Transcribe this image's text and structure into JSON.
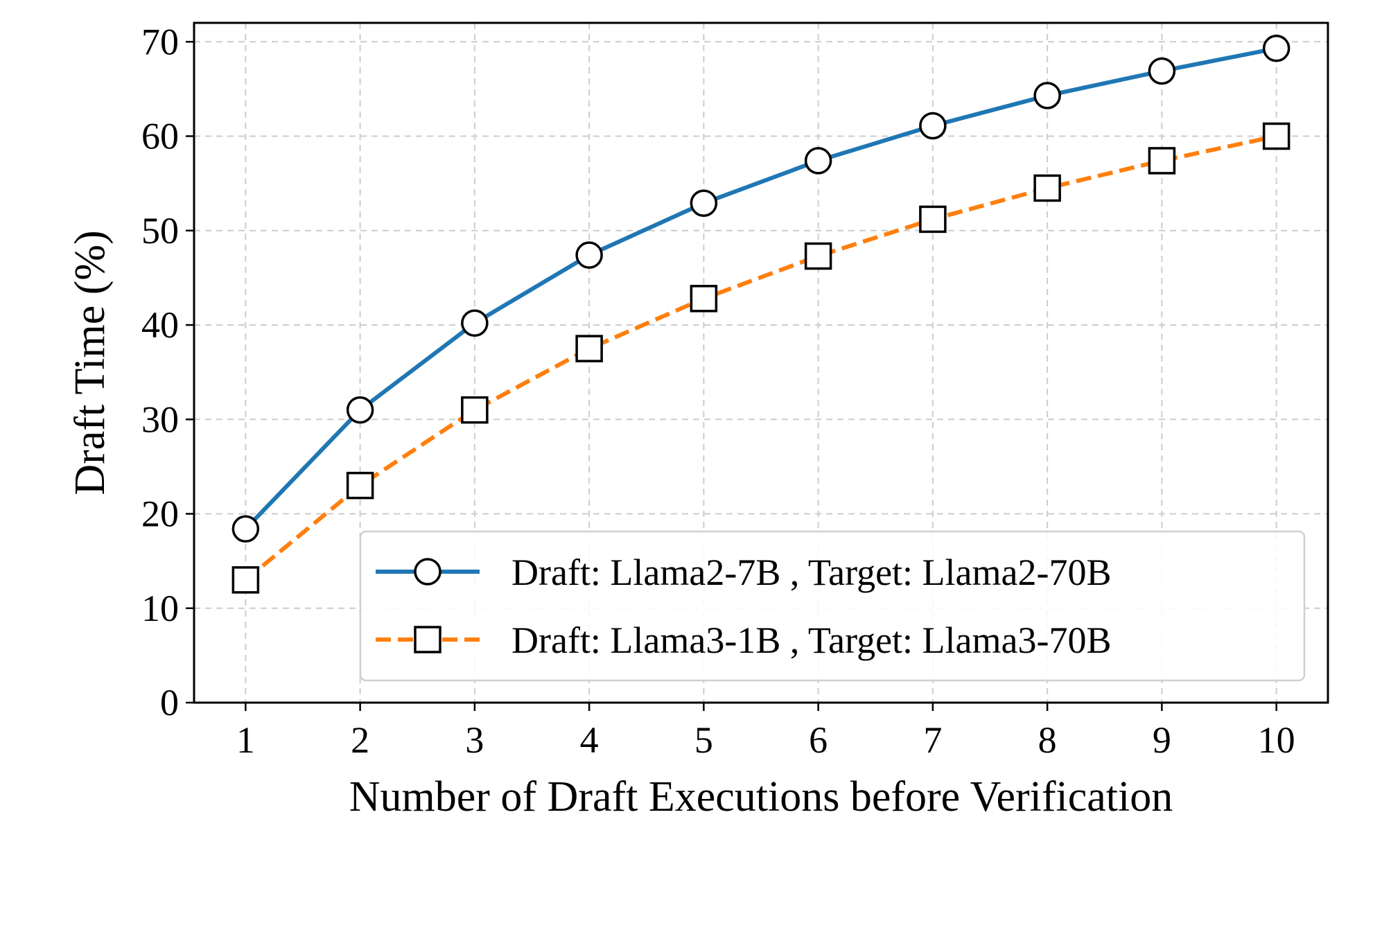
{
  "chart_data": {
    "type": "line",
    "xlabel": "Number of Draft Executions before Verification",
    "ylabel": "Draft Time (%)",
    "x": [
      1,
      2,
      3,
      4,
      5,
      6,
      7,
      8,
      9,
      10
    ],
    "xticks": [
      "1",
      "2",
      "3",
      "4",
      "5",
      "6",
      "7",
      "8",
      "9",
      "10"
    ],
    "yticks": [
      "0",
      "10",
      "20",
      "30",
      "40",
      "50",
      "60",
      "70"
    ],
    "xlim": [
      0.55,
      10.45
    ],
    "ylim": [
      0,
      72
    ],
    "grid": true,
    "legend_position": "lower-right",
    "series": [
      {
        "name": "Draft: Llama2-7B , Target: Llama2-70B",
        "values": [
          18.4,
          31.0,
          40.2,
          47.4,
          52.9,
          57.4,
          61.1,
          64.3,
          66.9,
          69.3
        ],
        "color": "#1f77b4",
        "line_style": "solid",
        "marker": "circle"
      },
      {
        "name": "Draft: Llama3-1B , Target: Llama3-70B",
        "values": [
          13.0,
          23.0,
          31.0,
          37.5,
          42.8,
          47.3,
          51.2,
          54.5,
          57.4,
          60.0
        ],
        "color": "#ff7f0e",
        "line_style": "dashed",
        "marker": "square"
      }
    ]
  }
}
